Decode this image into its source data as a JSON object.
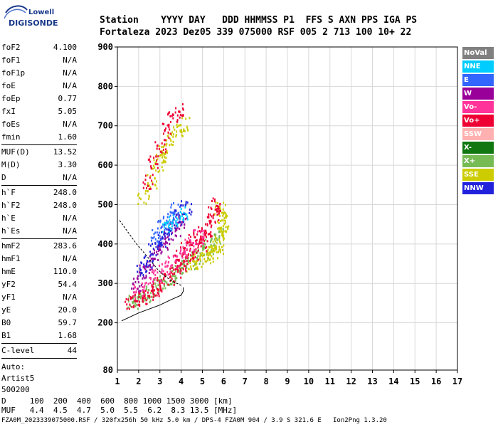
{
  "logo": {
    "line1": "Lowell",
    "line2": "DIGISONDE"
  },
  "header": {
    "line1": "Station    YYYY DAY   DDD HHMMSS P1  FFS S AXN PPS IGA PS",
    "line2": "Fortaleza 2023 Dez05 339 075000 RSF 005 2 713 100 10+ 22"
  },
  "params_group1": [
    {
      "label": "foF2",
      "value": "4.100"
    },
    {
      "label": "foF1",
      "value": "N/A"
    },
    {
      "label": "foF1p",
      "value": "N/A"
    },
    {
      "label": "foE",
      "value": "N/A"
    },
    {
      "label": "foEp",
      "value": "0.77"
    },
    {
      "label": "fxI",
      "value": "5.05"
    },
    {
      "label": "foEs",
      "value": "N/A"
    },
    {
      "label": "fmin",
      "value": "1.60"
    }
  ],
  "params_group2": [
    {
      "label": "MUF(D)",
      "value": "13.52"
    },
    {
      "label": "M(D)",
      "value": "3.30"
    },
    {
      "label": "D",
      "value": "N/A"
    }
  ],
  "params_group3": [
    {
      "label": "h`F",
      "value": "248.0"
    },
    {
      "label": "h`F2",
      "value": "248.0"
    },
    {
      "label": "h`E",
      "value": "N/A"
    },
    {
      "label": "h`Es",
      "value": "N/A"
    }
  ],
  "params_group4": [
    {
      "label": "hmF2",
      "value": "283.6"
    },
    {
      "label": "hmF1",
      "value": "N/A"
    },
    {
      "label": "hmE",
      "value": "110.0"
    },
    {
      "label": "yF2",
      "value": "54.4"
    },
    {
      "label": "yF1",
      "value": "N/A"
    },
    {
      "label": "yE",
      "value": "20.0"
    },
    {
      "label": "B0",
      "value": "59.7"
    },
    {
      "label": "B1",
      "value": "1.68"
    }
  ],
  "params_group5": [
    {
      "label": "C-level",
      "value": "44"
    }
  ],
  "auto": {
    "line1": "Auto:",
    "line2": "Artist5",
    "line3": "500200"
  },
  "legend": [
    {
      "label": "NoVal",
      "color": "#808080"
    },
    {
      "label": "NNE",
      "color": "#00ccff"
    },
    {
      "label": "E",
      "color": "#3366ff"
    },
    {
      "label": "W",
      "color": "#990099"
    },
    {
      "label": "Vo-",
      "color": "#ff3399"
    },
    {
      "label": "Vo+",
      "color": "#ee0033"
    },
    {
      "label": "SSW",
      "color": "#ffb0b0"
    },
    {
      "label": "X-",
      "color": "#117711"
    },
    {
      "label": "X+",
      "color": "#77bb55"
    },
    {
      "label": "SSE",
      "color": "#cccc00"
    },
    {
      "label": "NNW",
      "color": "#2222dd"
    }
  ],
  "footer": {
    "d_line": "D     100  200  400  600  800 1000 1500 3000 [km]",
    "muf_line": "MUF   4.4  4.5  4.7  5.0  5.5  6.2  8.3 13.5 [MHz]",
    "file_line": "FZA0M_2023339075000.RSF / 320fx256h 50 kHz 5.0 km / DPS-4 FZA0M 904 / 3.9 S 321.6 E   Ion2Png 1.3.20"
  },
  "chart_data": {
    "type": "scatter",
    "x_range": [
      1,
      17
    ],
    "y_range": [
      80,
      900
    ],
    "xticks": [
      "1",
      "2",
      "3",
      "4",
      "5",
      "6",
      "7",
      "8",
      "9",
      "10",
      "11",
      "12",
      "13",
      "14",
      "15",
      "16",
      "17"
    ],
    "yticks": [
      {
        "value": 200,
        "label": "200"
      },
      {
        "value": 300,
        "label": "300"
      },
      {
        "value": 400,
        "label": "400"
      },
      {
        "value": 500,
        "label": "500"
      },
      {
        "value": 600,
        "label": "600"
      },
      {
        "value": 700,
        "label": "700"
      },
      {
        "value": 800,
        "label": "800"
      },
      {
        "value": 900,
        "label": "900"
      }
    ],
    "y_bottom_label": "80",
    "grid": true,
    "traces": [
      {
        "name": "X+",
        "color": "#77bb55",
        "points": [
          [
            1.7,
            255
          ],
          [
            2.0,
            262
          ],
          [
            2.3,
            272
          ],
          [
            2.6,
            282
          ],
          [
            2.9,
            295
          ],
          [
            3.2,
            305
          ],
          [
            3.5,
            318
          ],
          [
            3.8,
            330
          ],
          [
            4.1,
            342
          ],
          [
            4.4,
            355
          ],
          [
            4.7,
            368
          ],
          [
            5.0,
            380
          ],
          [
            5.3,
            395
          ],
          [
            5.6,
            410
          ],
          [
            5.8,
            425
          ]
        ]
      },
      {
        "name": "SSE",
        "color": "#cccc00",
        "points": [
          [
            4.5,
            350
          ],
          [
            4.8,
            358
          ],
          [
            5.1,
            368
          ],
          [
            5.3,
            375
          ],
          [
            5.5,
            383
          ],
          [
            5.7,
            395
          ],
          [
            5.8,
            410
          ],
          [
            5.9,
            430
          ],
          [
            6.0,
            450
          ],
          [
            5.9,
            470
          ],
          [
            5.8,
            490
          ],
          [
            3.2,
            640
          ],
          [
            3.5,
            670
          ],
          [
            3.8,
            690
          ],
          [
            4.1,
            705
          ],
          [
            2.2,
            520
          ],
          [
            2.6,
            560
          ],
          [
            2.9,
            600
          ],
          [
            3.0,
            620
          ]
        ]
      },
      {
        "name": "Vo+",
        "color": "#ee0033",
        "points": [
          [
            1.6,
            250
          ],
          [
            1.9,
            258
          ],
          [
            2.2,
            266
          ],
          [
            2.5,
            276
          ],
          [
            2.8,
            288
          ],
          [
            3.1,
            300
          ],
          [
            3.4,
            315
          ],
          [
            3.7,
            330
          ],
          [
            4.0,
            345
          ],
          [
            4.3,
            360
          ],
          [
            4.6,
            380
          ],
          [
            4.9,
            400
          ],
          [
            5.1,
            420
          ],
          [
            5.3,
            440
          ],
          [
            5.4,
            460
          ],
          [
            5.5,
            480
          ],
          [
            5.6,
            500
          ],
          [
            4.8,
            430
          ],
          [
            4.5,
            410
          ],
          [
            4.2,
            390
          ],
          [
            3.9,
            370
          ],
          [
            2.4,
            560
          ],
          [
            2.7,
            610
          ],
          [
            3.0,
            650
          ],
          [
            3.3,
            690
          ],
          [
            3.6,
            720
          ],
          [
            3.9,
            740
          ]
        ]
      },
      {
        "name": "Vo-",
        "color": "#ff3399",
        "points": [
          [
            2.0,
            280
          ],
          [
            2.4,
            300
          ],
          [
            2.8,
            320
          ],
          [
            3.2,
            340
          ],
          [
            3.6,
            360
          ],
          [
            4.0,
            380
          ],
          [
            4.4,
            400
          ],
          [
            4.8,
            420
          ]
        ]
      },
      {
        "name": "W",
        "color": "#990099",
        "points": [
          [
            1.9,
            300
          ],
          [
            2.2,
            330
          ],
          [
            2.5,
            355
          ],
          [
            2.8,
            380
          ],
          [
            3.1,
            400
          ],
          [
            3.4,
            420
          ],
          [
            3.7,
            440
          ],
          [
            4.0,
            460
          ]
        ]
      },
      {
        "name": "NNW",
        "color": "#2222dd",
        "points": [
          [
            2.1,
            340
          ],
          [
            2.4,
            360
          ],
          [
            2.7,
            390
          ],
          [
            3.0,
            410
          ],
          [
            3.3,
            430
          ],
          [
            3.6,
            450
          ],
          [
            3.9,
            470
          ],
          [
            4.2,
            495
          ]
        ]
      },
      {
        "name": "E",
        "color": "#3366ff",
        "points": [
          [
            2.8,
            420
          ],
          [
            3.1,
            445
          ],
          [
            3.4,
            470
          ],
          [
            3.7,
            490
          ]
        ]
      },
      {
        "name": "NNE",
        "color": "#00ccff",
        "points": [
          [
            3.3,
            440
          ],
          [
            3.6,
            460
          ],
          [
            4.1,
            480
          ]
        ]
      }
    ],
    "curves": [
      {
        "name": "profile",
        "style": "solid",
        "points": [
          [
            1.2,
            205
          ],
          [
            1.6,
            215
          ],
          [
            2.0,
            225
          ],
          [
            2.5,
            235
          ],
          [
            3.0,
            245
          ],
          [
            3.5,
            258
          ],
          [
            4.0,
            270
          ],
          [
            4.1,
            280
          ],
          [
            4.1,
            290
          ]
        ]
      },
      {
        "name": "trace",
        "style": "dashed",
        "points": [
          [
            1.1,
            460
          ],
          [
            1.5,
            430
          ],
          [
            1.9,
            400
          ],
          [
            2.3,
            375
          ],
          [
            2.6,
            355
          ],
          [
            2.9,
            335
          ],
          [
            3.2,
            320
          ],
          [
            3.5,
            308
          ],
          [
            3.8,
            300
          ],
          [
            4.0,
            295
          ]
        ]
      }
    ]
  }
}
